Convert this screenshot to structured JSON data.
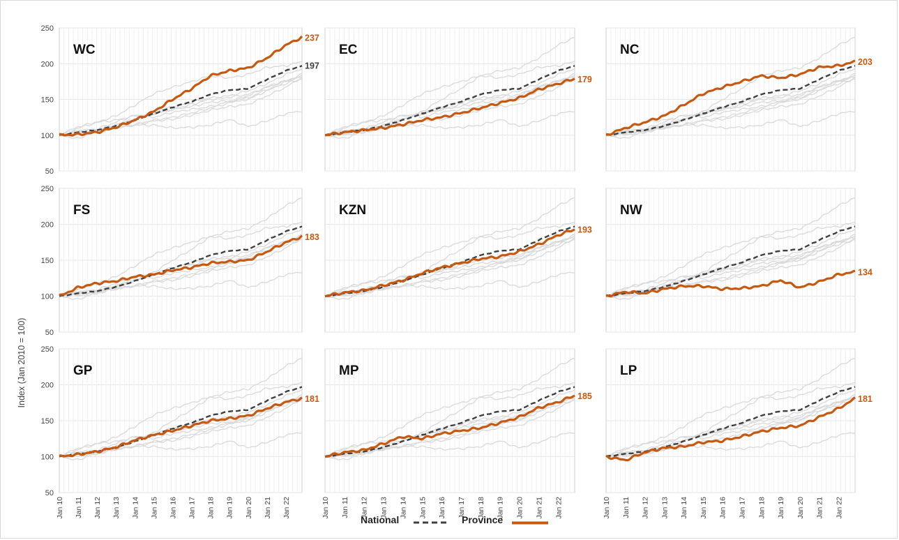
{
  "y_axis_label": "Index (Jan 2010 = 100)",
  "legend": {
    "national_label": "National",
    "province_label": "Province"
  },
  "colors": {
    "province": "#c65911",
    "national": "#404040",
    "background_series": "#d9d9d9",
    "grid": "#e6e6e6"
  },
  "chart_data": {
    "type": "line",
    "layout": "3x3 small multiples",
    "x_tick_labels": [
      "Jan 10",
      "Jan 11",
      "Jan 12",
      "Jan 13",
      "Jan 14",
      "Jan 15",
      "Jan 16",
      "Jan 17",
      "Jan 18",
      "Jan 19",
      "Jan 20",
      "Jan 21",
      "Jan 22"
    ],
    "x_range": [
      2010.0,
      2022.85
    ],
    "ylim": [
      50,
      250
    ],
    "y_ticks": [
      50,
      100,
      150,
      200,
      250
    ],
    "grid": true,
    "national": {
      "name": "National",
      "x": [
        2010,
        2011,
        2012,
        2013,
        2014,
        2015,
        2016,
        2017,
        2018,
        2019,
        2020,
        2021,
        2022,
        2022.85
      ],
      "values": [
        100,
        104,
        107,
        113,
        121,
        130,
        139,
        147,
        157,
        163,
        165,
        178,
        190,
        197
      ],
      "end_label": "197"
    },
    "panels": [
      {
        "title": "WC",
        "end_label": "237",
        "x": [
          2010,
          2011,
          2012,
          2013,
          2014,
          2015,
          2016,
          2017,
          2018,
          2019,
          2020,
          2021,
          2022,
          2022.85
        ],
        "values": [
          100,
          101,
          104,
          111,
          121,
          133,
          150,
          165,
          183,
          190,
          194,
          208,
          226,
          237
        ]
      },
      {
        "title": "EC",
        "end_label": "179",
        "x": [
          2010,
          2011,
          2012,
          2013,
          2014,
          2015,
          2016,
          2017,
          2018,
          2019,
          2020,
          2021,
          2022,
          2022.85
        ],
        "values": [
          100,
          104,
          107,
          110,
          115,
          121,
          125,
          131,
          138,
          145,
          152,
          164,
          172,
          179
        ]
      },
      {
        "title": "NC",
        "end_label": "203",
        "x": [
          2010,
          2011,
          2012,
          2013,
          2014,
          2015,
          2016,
          2017,
          2018,
          2019,
          2020,
          2021,
          2022,
          2022.85
        ],
        "values": [
          100,
          110,
          118,
          127,
          142,
          158,
          167,
          175,
          183,
          180,
          185,
          195,
          197,
          203
        ]
      },
      {
        "title": "FS",
        "end_label": "183",
        "x": [
          2010,
          2011,
          2012,
          2013,
          2014,
          2015,
          2016,
          2017,
          2018,
          2019,
          2020,
          2021,
          2022,
          2022.85
        ],
        "values": [
          100,
          112,
          118,
          121,
          127,
          130,
          136,
          140,
          146,
          148,
          150,
          162,
          175,
          183
        ]
      },
      {
        "title": "KZN",
        "end_label": "193",
        "x": [
          2010,
          2011,
          2012,
          2013,
          2014,
          2015,
          2016,
          2017,
          2018,
          2019,
          2020,
          2021,
          2022,
          2022.85
        ],
        "values": [
          100,
          105,
          108,
          115,
          122,
          132,
          140,
          146,
          152,
          155,
          162,
          172,
          185,
          193
        ]
      },
      {
        "title": "NW",
        "end_label": "134",
        "x": [
          2010,
          2011,
          2012,
          2013,
          2014,
          2015,
          2016,
          2017,
          2018,
          2019,
          2020,
          2021,
          2022,
          2022.85
        ],
        "values": [
          100,
          106,
          104,
          110,
          114,
          114,
          110,
          111,
          114,
          122,
          112,
          120,
          130,
          134
        ]
      },
      {
        "title": "GP",
        "end_label": "181",
        "x": [
          2010,
          2011,
          2012,
          2013,
          2014,
          2015,
          2016,
          2017,
          2018,
          2019,
          2020,
          2021,
          2022,
          2022.85
        ],
        "values": [
          100,
          103,
          107,
          113,
          123,
          130,
          136,
          143,
          150,
          153,
          157,
          167,
          176,
          181
        ]
      },
      {
        "title": "MP",
        "end_label": "185",
        "x": [
          2010,
          2011,
          2012,
          2013,
          2014,
          2015,
          2016,
          2017,
          2018,
          2019,
          2020,
          2021,
          2022,
          2022.85
        ],
        "values": [
          100,
          106,
          109,
          118,
          128,
          125,
          132,
          136,
          140,
          147,
          155,
          168,
          176,
          185
        ]
      },
      {
        "title": "LP",
        "end_label": "181",
        "x": [
          2010,
          2011,
          2012,
          2013,
          2014,
          2015,
          2016,
          2017,
          2018,
          2019,
          2020,
          2021,
          2022,
          2022.85
        ],
        "values": [
          100,
          95,
          106,
          112,
          114,
          120,
          122,
          128,
          135,
          140,
          143,
          155,
          167,
          181
        ]
      }
    ]
  }
}
